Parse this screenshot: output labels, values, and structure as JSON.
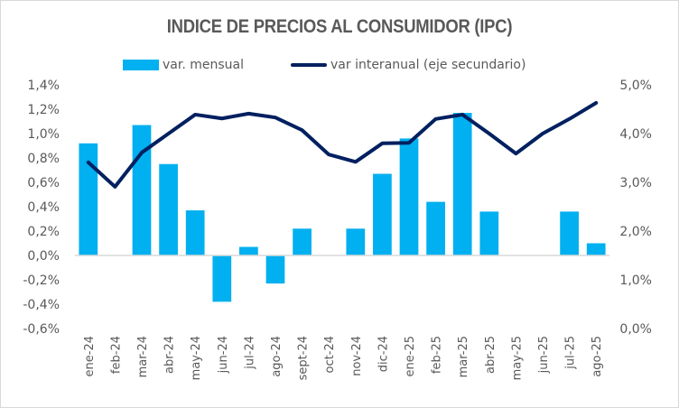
{
  "chart_data": {
    "type": "bar+line",
    "title": "INDICE DE PRECIOS AL CONSUMIDOR (IPC)",
    "categories": [
      "ene-24",
      "feb-24",
      "mar-24",
      "abr-24",
      "may-24",
      "jun-24",
      "jul-24",
      "ago-24",
      "sept-24",
      "oct-24",
      "nov-24",
      "dic-24",
      "ene-25",
      "feb-25",
      "mar-25",
      "abr-25",
      "may-25",
      "jun-25",
      "jul-25",
      "ago-25"
    ],
    "series": [
      {
        "name": "var. mensual",
        "type": "bar",
        "axis": "primary",
        "color": "#00b0f0",
        "values": [
          0.92,
          0.0,
          1.07,
          0.75,
          0.37,
          -0.38,
          0.07,
          -0.23,
          0.22,
          0.0,
          0.22,
          0.67,
          0.96,
          0.44,
          1.17,
          0.36,
          0.0,
          0.0,
          0.36,
          0.1
        ]
      },
      {
        "name": "var interanual (eje secundario)",
        "type": "line",
        "axis": "secondary",
        "color": "#002060",
        "values": [
          3.41,
          2.91,
          3.61,
          4.0,
          4.39,
          4.31,
          4.41,
          4.33,
          4.07,
          3.57,
          3.42,
          3.8,
          3.81,
          4.3,
          4.39,
          4.0,
          3.59,
          4.0,
          4.3,
          4.63
        ]
      }
    ],
    "primary_axis": {
      "ylim": [
        -0.6,
        1.4
      ],
      "ticks": [
        "1,4%",
        "1,2%",
        "1,0%",
        "0,8%",
        "0,6%",
        "0,4%",
        "0,2%",
        "0,0%",
        "-0,2%",
        "-0,4%",
        "-0,6%"
      ]
    },
    "secondary_axis": {
      "ylim": [
        0.0,
        5.0
      ],
      "ticks": [
        "5,0%",
        "4,0%",
        "3,0%",
        "2,0%",
        "1,0%",
        "0,0%"
      ]
    },
    "grid": false,
    "legend_position": "top"
  }
}
